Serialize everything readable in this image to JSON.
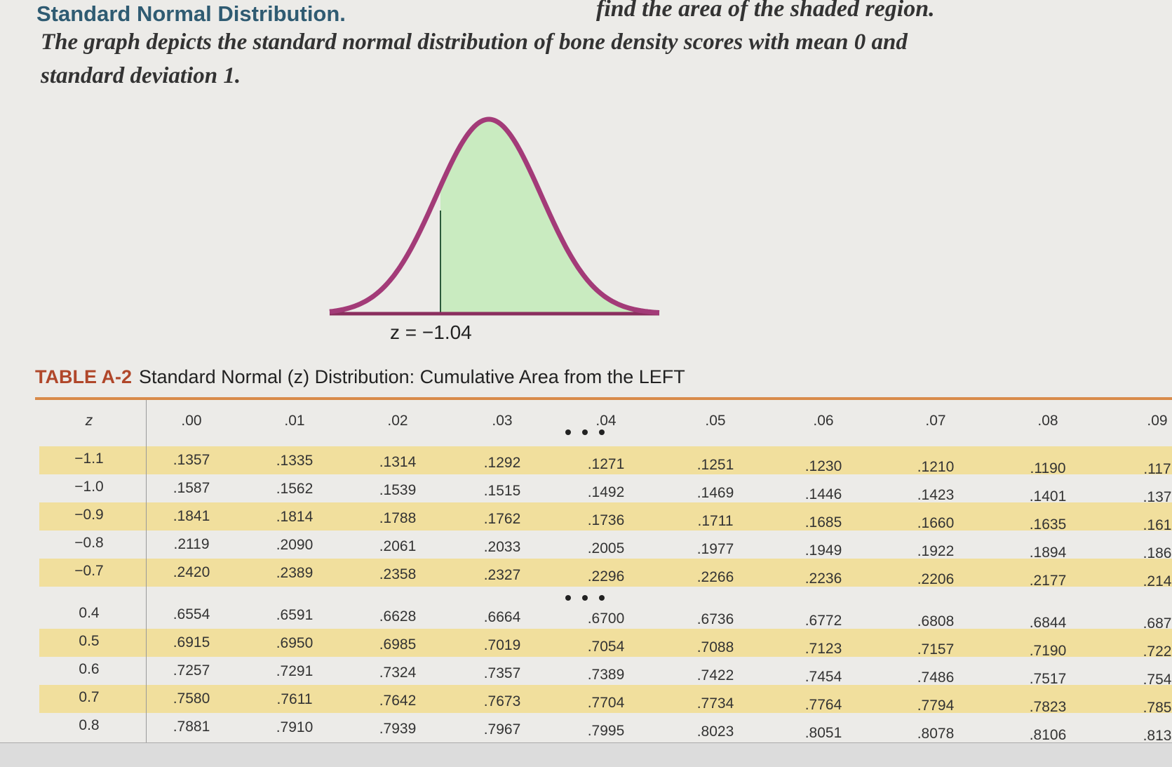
{
  "header": {
    "title": "Standard Normal Distribution.",
    "instruction": "find the area of the shaded region.",
    "description": "The graph depicts the standard normal distribution of bone density scores with mean 0 and standard deviation 1."
  },
  "graph": {
    "label": "z = −1.04"
  },
  "table": {
    "title_prefix": "TABLE A-2",
    "title": "Standard Normal (z) Distribution: Cumulative Area from the LEFT",
    "columns": [
      "z",
      ".00",
      ".01",
      ".02",
      ".03",
      ".04",
      ".05",
      ".06",
      ".07",
      ".08",
      ".09"
    ],
    "rows": [
      [
        "−1.1",
        ".1357",
        ".1335",
        ".1314",
        ".1292",
        ".1271",
        ".1251",
        ".1230",
        ".1210",
        ".1190",
        ".117"
      ],
      [
        "−1.0",
        ".1587",
        ".1562",
        ".1539",
        ".1515",
        ".1492",
        ".1469",
        ".1446",
        ".1423",
        ".1401",
        ".137"
      ],
      [
        "−0.9",
        ".1841",
        ".1814",
        ".1788",
        ".1762",
        ".1736",
        ".1711",
        ".1685",
        ".1660",
        ".1635",
        ".161"
      ],
      [
        "−0.8",
        ".2119",
        ".2090",
        ".2061",
        ".2033",
        ".2005",
        ".1977",
        ".1949",
        ".1922",
        ".1894",
        ".186"
      ],
      [
        "−0.7",
        ".2420",
        ".2389",
        ".2358",
        ".2327",
        ".2296",
        ".2266",
        ".2236",
        ".2206",
        ".2177",
        ".214"
      ],
      [
        "0.4",
        ".6554",
        ".6591",
        ".6628",
        ".6664",
        ".6700",
        ".6736",
        ".6772",
        ".6808",
        ".6844",
        ".687"
      ],
      [
        "0.5",
        ".6915",
        ".6950",
        ".6985",
        ".7019",
        ".7054",
        ".7088",
        ".7123",
        ".7157",
        ".7190",
        ".722"
      ],
      [
        "0.6",
        ".7257",
        ".7291",
        ".7324",
        ".7357",
        ".7389",
        ".7422",
        ".7454",
        ".7486",
        ".7517",
        ".754"
      ],
      [
        "0.7",
        ".7580",
        ".7611",
        ".7642",
        ".7673",
        ".7704",
        ".7734",
        ".7764",
        ".7794",
        ".7823",
        ".785"
      ],
      [
        "0.8",
        ".7881",
        ".7910",
        ".7939",
        ".7967",
        ".7995",
        ".8023",
        ".8051",
        ".8078",
        ".8106",
        ".813"
      ]
    ]
  }
}
